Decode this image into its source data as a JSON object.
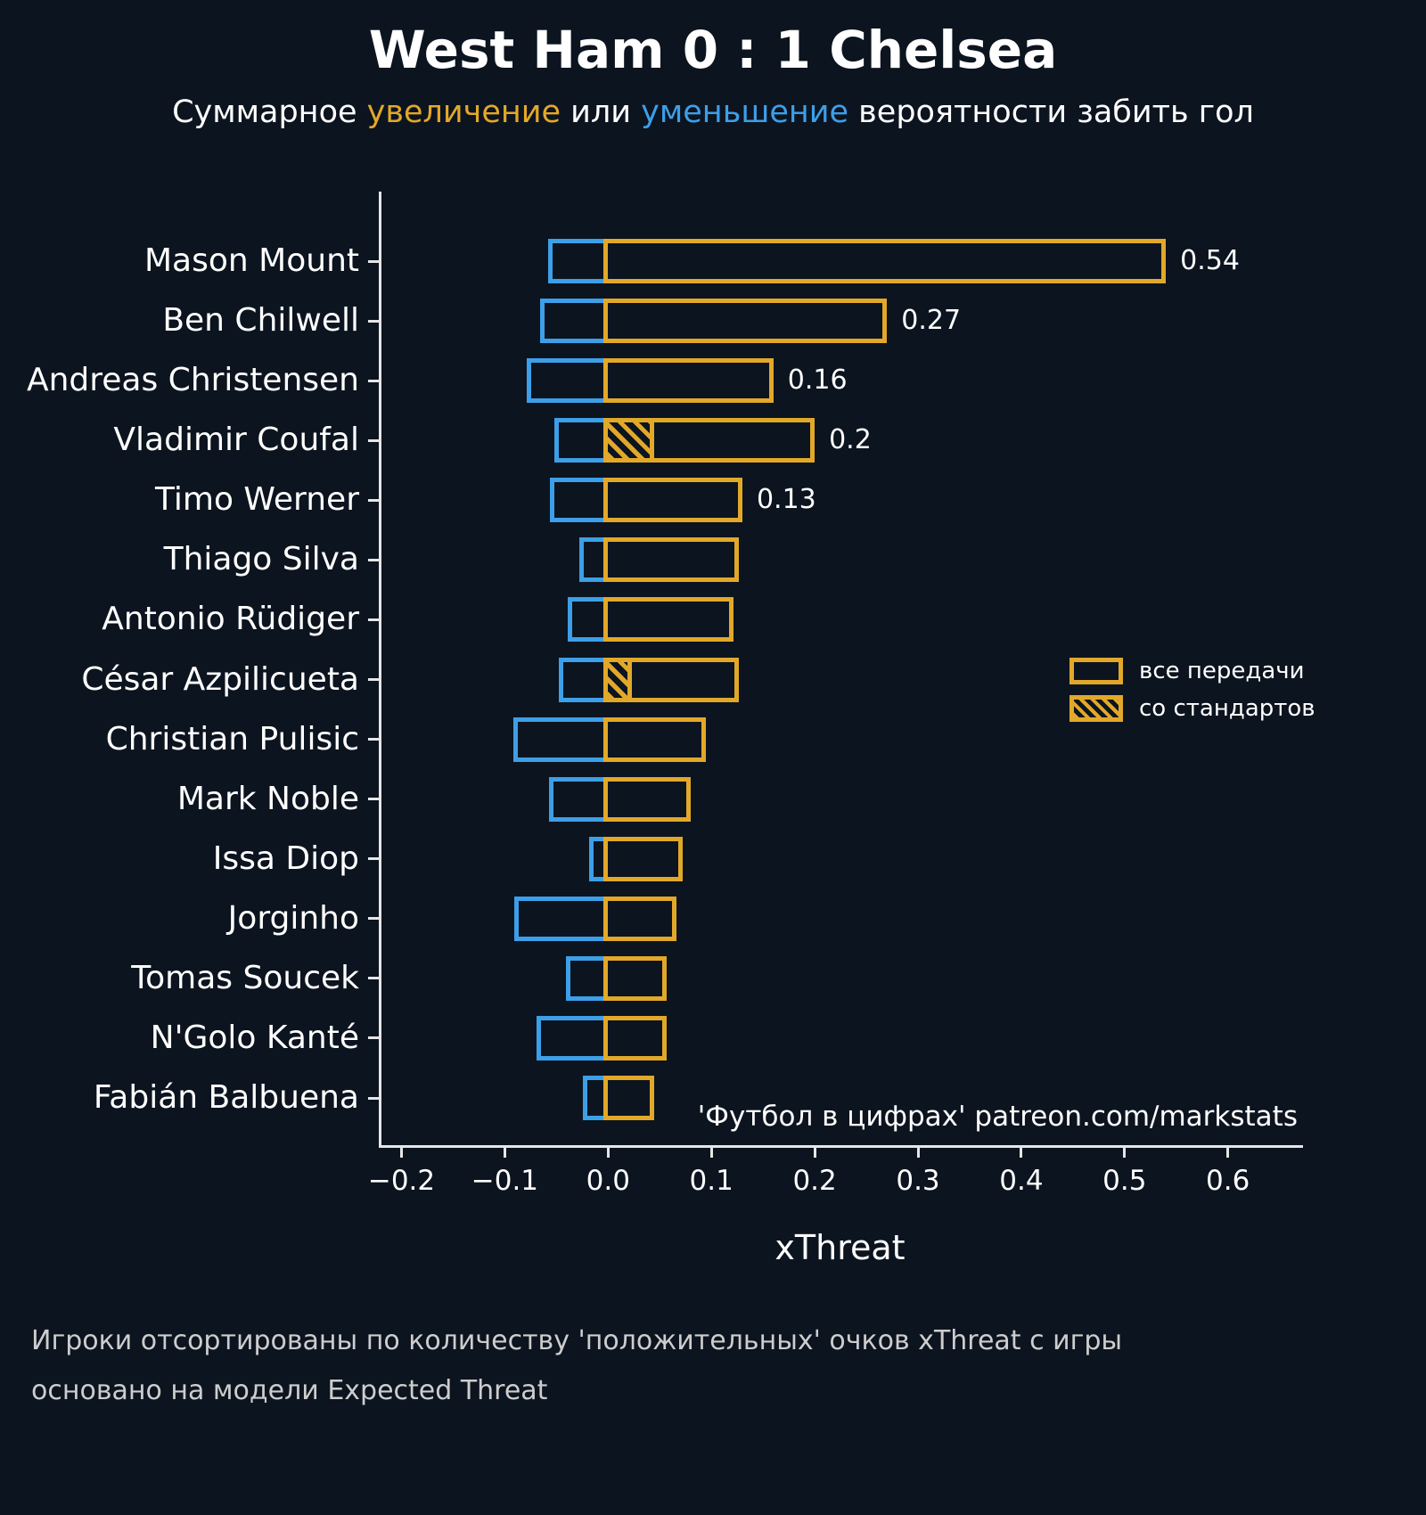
{
  "header": {
    "title": "West Ham 0 : 1 Chelsea",
    "subtitle": {
      "prefix": "Суммарное ",
      "increase": "увеличение",
      "middle": " или ",
      "decrease": "уменьшение",
      "suffix": " вероятности забить гол"
    }
  },
  "colors": {
    "background": "#0c141f",
    "positive": "#e2a829",
    "negative": "#3d9fe8",
    "text": "#ffffff",
    "muted": "#cdcdcd",
    "axis": "#e6e6e6"
  },
  "chart_data": {
    "type": "bar",
    "orientation": "horizontal",
    "xlabel": "xThreat",
    "xlim": [
      -0.222,
      0.671
    ],
    "x_ticks": [
      -0.2,
      -0.1,
      0.0,
      0.1,
      0.2,
      0.3,
      0.4,
      0.5,
      0.6
    ],
    "x_tick_labels": [
      "−0.2",
      "−0.1",
      "0.0",
      "0.1",
      "0.2",
      "0.3",
      "0.4",
      "0.5",
      "0.6"
    ],
    "legend": [
      {
        "label": "все передачи",
        "style": "solid"
      },
      {
        "label": "со стандартов",
        "style": "hatched"
      }
    ],
    "annotation": "'Футбол в цифрах' patreon.com/markstats",
    "players": [
      {
        "name": "Mason Mount",
        "negative": -0.058,
        "positive": 0.54,
        "set_piece": 0,
        "value_label": "0.54"
      },
      {
        "name": "Ben Chilwell",
        "negative": -0.066,
        "positive": 0.27,
        "set_piece": 0,
        "value_label": "0.27"
      },
      {
        "name": "Andreas Christensen",
        "negative": -0.079,
        "positive": 0.16,
        "set_piece": 0,
        "value_label": "0.16"
      },
      {
        "name": "Vladimir Coufal",
        "negative": -0.052,
        "positive": 0.2,
        "set_piece": 0.045,
        "value_label": "0.2"
      },
      {
        "name": "Timo Werner",
        "negative": -0.056,
        "positive": 0.13,
        "set_piece": 0,
        "value_label": "0.13"
      },
      {
        "name": "Thiago Silva",
        "negative": -0.028,
        "positive": 0.127,
        "set_piece": 0,
        "value_label": ""
      },
      {
        "name": "Antonio Rüdiger",
        "negative": -0.039,
        "positive": 0.121,
        "set_piece": 0,
        "value_label": ""
      },
      {
        "name": "César Azpilicueta",
        "negative": -0.048,
        "positive": 0.127,
        "set_piece": 0.023,
        "value_label": ""
      },
      {
        "name": "Christian Pulisic",
        "negative": -0.092,
        "positive": 0.095,
        "set_piece": 0,
        "value_label": ""
      },
      {
        "name": "Mark Noble",
        "negative": -0.057,
        "positive": 0.08,
        "set_piece": 0,
        "value_label": ""
      },
      {
        "name": "Issa Diop",
        "negative": -0.018,
        "positive": 0.072,
        "set_piece": 0,
        "value_label": ""
      },
      {
        "name": "Jorginho",
        "negative": -0.091,
        "positive": 0.066,
        "set_piece": 0,
        "value_label": ""
      },
      {
        "name": "Tomas Soucek",
        "negative": -0.041,
        "positive": 0.057,
        "set_piece": 0,
        "value_label": ""
      },
      {
        "name": "N'Golo Kanté",
        "negative": -0.069,
        "positive": 0.057,
        "set_piece": 0,
        "value_label": ""
      },
      {
        "name": "Fabián Balbuena",
        "negative": -0.024,
        "positive": 0.045,
        "set_piece": 0,
        "value_label": ""
      }
    ]
  },
  "footer": {
    "line1": "Игроки отсортированы по количеству 'положительных' очков xThreat с игры",
    "line2": "основано на модели Expected Threat"
  }
}
